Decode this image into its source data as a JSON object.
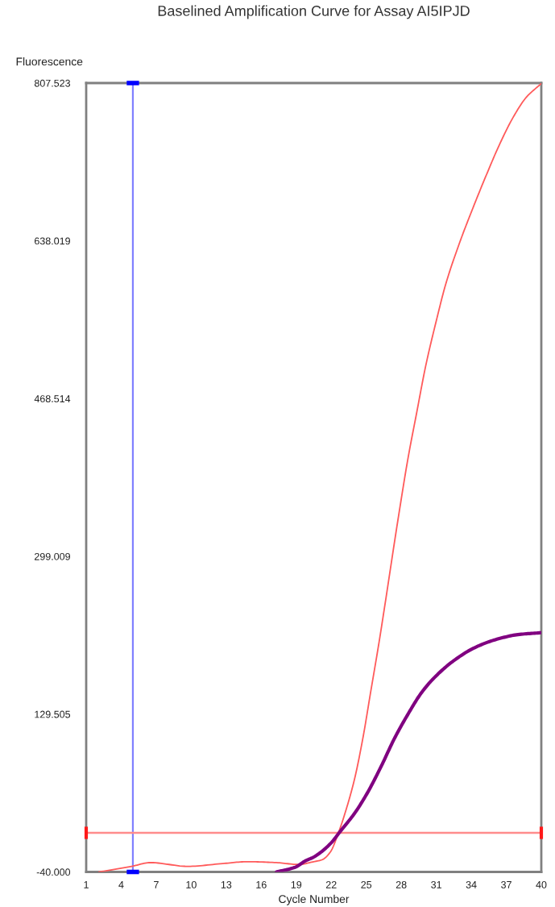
{
  "chart_data": {
    "type": "line",
    "title": "Baselined Amplification Curve for Assay AI5IPJD",
    "xlabel": "Cycle Number",
    "ylabel": "Fluorescence",
    "xlim": [
      1,
      40
    ],
    "xticks": [
      1,
      4,
      7,
      10,
      13,
      16,
      19,
      22,
      25,
      28,
      31,
      34,
      37,
      40
    ],
    "ylim": [
      -40,
      807.523
    ],
    "yticks": [
      {
        "value": -40,
        "label": "-40.000"
      },
      129.505,
      299.009,
      468.514,
      638.019,
      807.523
    ],
    "series": [
      {
        "color": "#ff5a5a",
        "x": [
          2.1,
          4.9,
          6.5,
          9.7,
          12.7,
          14.8,
          17.3,
          19.2,
          20.5,
          21.2,
          21.9,
          22.7,
          23.3,
          24.0,
          24.7,
          25.4,
          26.1,
          26.6,
          27.7,
          28.6,
          29.3,
          30.1,
          31.0,
          31.8,
          33.0,
          34.1,
          35.3,
          36.4,
          37.6,
          38.7,
          40
        ],
        "values": [
          -40,
          -34,
          -30,
          -34,
          -31,
          -29,
          -30,
          -32,
          -29,
          -27,
          -19,
          5,
          28,
          60,
          103,
          155,
          207,
          247,
          337,
          406,
          452,
          504,
          552,
          591,
          636,
          672,
          709,
          741,
          771,
          792,
          807
        ]
      },
      {
        "color": "#800080",
        "x": [
          17.3,
          18.9,
          19.8,
          20.5,
          21.9,
          22.8,
          24.0,
          25.1,
          26.3,
          27.4,
          28.6,
          29.7,
          30.7,
          32.5,
          34.3,
          36.2,
          38.0,
          40
        ],
        "values": [
          -40,
          -35,
          -28,
          -24,
          -10,
          4,
          23,
          45,
          74,
          103,
          130,
          152,
          167,
          187,
          201,
          210,
          215,
          217
        ]
      }
    ],
    "ref_lines": [
      {
        "axis": "x",
        "value": 5,
        "color": "#8080ff"
      },
      {
        "axis": "y",
        "value": 2,
        "color": "#ff8c8c"
      }
    ]
  }
}
